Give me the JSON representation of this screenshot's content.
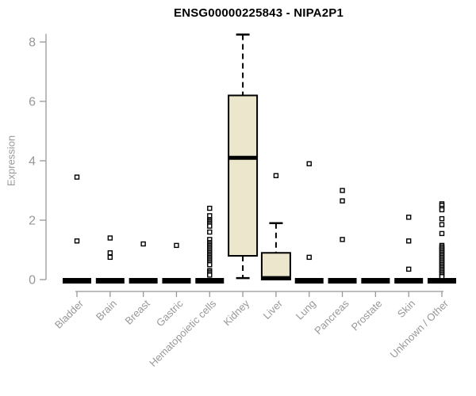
{
  "title": "ENSG00000225843 - NIPA2P1",
  "chart_data": {
    "type": "boxplot",
    "title": "ENSG00000225843 - NIPA2P1",
    "xlabel": "",
    "ylabel": "Expression",
    "ylim": [
      0,
      8.3
    ],
    "yticks": [
      0,
      2,
      4,
      6,
      8
    ],
    "grid": false,
    "legend": "none",
    "categories": [
      "Bladder",
      "Brain",
      "Breast",
      "Gastric",
      "Hematopoietic cells",
      "Kidney",
      "Liver",
      "Lung",
      "Pancreas",
      "Prostate",
      "Skin",
      "Unknown / Other"
    ],
    "series": [
      {
        "category": "Bladder",
        "whisker_low": 0,
        "q1": 0,
        "median": 0,
        "q3": 0,
        "whisker_high": 0,
        "outliers": [
          3.45,
          1.3
        ]
      },
      {
        "category": "Brain",
        "whisker_low": 0,
        "q1": 0,
        "median": 0,
        "q3": 0,
        "whisker_high": 0,
        "outliers": [
          1.4,
          0.9,
          0.75
        ]
      },
      {
        "category": "Breast",
        "whisker_low": 0,
        "q1": 0,
        "median": 0,
        "q3": 0,
        "whisker_high": 0,
        "outliers": [
          1.2
        ]
      },
      {
        "category": "Gastric",
        "whisker_low": 0,
        "q1": 0,
        "median": 0,
        "q3": 0,
        "whisker_high": 0,
        "outliers": [
          1.15
        ]
      },
      {
        "category": "Hematopoietic cells",
        "whisker_low": 0,
        "q1": 0,
        "median": 0,
        "q3": 0,
        "whisker_high": 0,
        "outliers": [
          2.4,
          2.15,
          2.0,
          1.95,
          1.9,
          1.85,
          1.8,
          1.6,
          1.35,
          1.25,
          1.2,
          1.15,
          1.1,
          1.05,
          1.0,
          0.95,
          0.9,
          0.85,
          0.8,
          0.75,
          0.7,
          0.65,
          0.6,
          0.55,
          0.5,
          0.3,
          0.25,
          0.2,
          0.15
        ]
      },
      {
        "category": "Kidney",
        "whisker_low": 0.05,
        "q1": 0.8,
        "median": 4.1,
        "q3": 6.2,
        "whisker_high": 8.25,
        "outliers": []
      },
      {
        "category": "Liver",
        "whisker_low": 0,
        "q1": 0,
        "median": 0.05,
        "q3": 0.9,
        "whisker_high": 1.9,
        "outliers": [
          3.5
        ]
      },
      {
        "category": "Lung",
        "whisker_low": 0,
        "q1": 0,
        "median": 0,
        "q3": 0,
        "whisker_high": 0,
        "outliers": [
          3.9,
          0.75
        ]
      },
      {
        "category": "Pancreas",
        "whisker_low": 0,
        "q1": 0,
        "median": 0,
        "q3": 0,
        "whisker_high": 0,
        "outliers": [
          3.0,
          2.65,
          1.35
        ]
      },
      {
        "category": "Prostate",
        "whisker_low": 0,
        "q1": 0,
        "median": 0,
        "q3": 0,
        "whisker_high": 0,
        "outliers": []
      },
      {
        "category": "Skin",
        "whisker_low": 0,
        "q1": 0,
        "median": 0,
        "q3": 0,
        "whisker_high": 0,
        "outliers": [
          2.1,
          1.3,
          0.35
        ]
      },
      {
        "category": "Unknown / Other",
        "whisker_low": 0,
        "q1": 0,
        "median": 0,
        "q3": 0,
        "whisker_high": 0,
        "outliers": [
          2.55,
          2.5,
          2.4,
          2.35,
          2.05,
          1.85,
          1.55,
          1.15,
          1.1,
          1.05,
          1.0,
          0.95,
          0.9,
          0.85,
          0.8,
          0.75,
          0.7,
          0.65,
          0.6,
          0.55,
          0.5,
          0.45,
          0.4,
          0.35,
          0.3,
          0.25,
          0.2,
          0.15,
          0.1
        ]
      }
    ],
    "colors": {
      "box_fill": "#ECE6CD",
      "box_border": "#000000",
      "median": "#000000",
      "whisker": "#000000",
      "outlier": "#000000",
      "axis": "#989898",
      "tick_label": "#989898",
      "title": "#000000"
    }
  }
}
